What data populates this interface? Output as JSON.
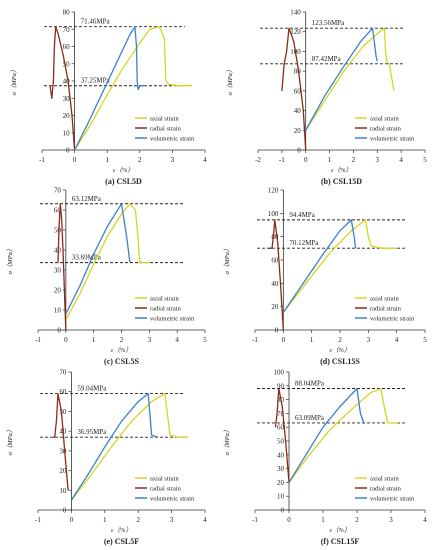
{
  "colors": {
    "axial": "#d4d620",
    "radial": "#8b2a16",
    "volumetric": "#3d7fcf",
    "axis": "#333333",
    "ref": "#222222"
  },
  "chart_data": [
    {
      "type": "line",
      "panel": "(a) CSL5D",
      "xlabel": "ε（%）",
      "ylabel": "σ（MPa）",
      "xlim": [
        -1,
        4
      ],
      "ylim": [
        0,
        80
      ],
      "xticks": [
        -1,
        0,
        1,
        2,
        3,
        4
      ],
      "yticks": [
        0,
        10,
        20,
        30,
        40,
        50,
        60,
        70,
        80
      ],
      "peak": 71.46,
      "residual": 37.25,
      "annotations": [
        "71.46MPa",
        "37.25MPa"
      ],
      "legend": [
        "axial strain",
        "radial strain",
        "volumetric strain"
      ],
      "series": [
        {
          "name": "axial strain",
          "color": "#d4d620",
          "x": [
            0,
            0.5,
            1.0,
            1.5,
            2.0,
            2.3,
            2.6,
            2.75,
            2.8,
            2.9,
            3.2,
            3.6
          ],
          "y": [
            0,
            15,
            32,
            48,
            62,
            70,
            71.46,
            65,
            40,
            38,
            37.25,
            37.25
          ]
        },
        {
          "name": "radial strain",
          "color": "#8b2a16",
          "x": [
            0,
            -0.08,
            -0.2,
            -0.35,
            -0.5,
            -0.58,
            -0.62,
            -0.65,
            -0.7,
            -0.75
          ],
          "y": [
            0,
            20,
            40,
            55,
            67,
            71.46,
            60,
            40,
            30,
            37
          ]
        },
        {
          "name": "volumetric strain",
          "color": "#3d7fcf",
          "x": [
            0,
            0.4,
            0.9,
            1.4,
            1.7,
            1.85,
            1.9,
            1.92,
            1.95,
            2.0,
            2.2
          ],
          "y": [
            0,
            15,
            35,
            55,
            67,
            71.46,
            60,
            40,
            35,
            37.25,
            37.25
          ]
        }
      ]
    },
    {
      "type": "line",
      "panel": "(b) CSL15D",
      "xlabel": "ε（%）",
      "ylabel": "σ（MPa）",
      "xlim": [
        -2,
        5
      ],
      "ylim": [
        0,
        140
      ],
      "xticks": [
        -2,
        -1,
        0,
        1,
        2,
        3,
        4,
        5
      ],
      "yticks": [
        0,
        20,
        40,
        60,
        80,
        100,
        120,
        140
      ],
      "peak": 123.56,
      "residual": 87.42,
      "annotations": [
        "123.56MPa",
        "87.42MPa"
      ],
      "legend": [
        "axial strain",
        "radial strain",
        "volumetric strain"
      ],
      "series": [
        {
          "name": "axial strain",
          "color": "#d4d620",
          "x": [
            0,
            0.8,
            1.6,
            2.4,
            3.0,
            3.3,
            3.35,
            3.4,
            3.5,
            3.7
          ],
          "y": [
            20,
            50,
            80,
            105,
            118,
            123.56,
            100,
            90,
            87.42,
            60
          ]
        },
        {
          "name": "radial strain",
          "color": "#8b2a16",
          "x": [
            0,
            -0.1,
            -0.3,
            -0.5,
            -0.7,
            -0.8,
            -0.9,
            -1.0
          ],
          "y": [
            0,
            40,
            80,
            110,
            123.56,
            100,
            87.42,
            60
          ]
        },
        {
          "name": "volumetric strain",
          "color": "#3d7fcf",
          "x": [
            0,
            0.8,
            1.6,
            2.3,
            2.8,
            2.9,
            2.95,
            3.0
          ],
          "y": [
            20,
            55,
            85,
            110,
            123.56,
            105,
            95,
            90
          ]
        }
      ]
    },
    {
      "type": "line",
      "panel": "(c) CSL5S",
      "xlabel": "ε（%）",
      "ylabel": "σ（MPa）",
      "xlim": [
        -1,
        5
      ],
      "ylim": [
        0,
        70
      ],
      "xticks": [
        -1,
        0,
        1,
        2,
        3,
        4,
        5
      ],
      "yticks": [
        0,
        10,
        20,
        30,
        40,
        50,
        60,
        70
      ],
      "peak": 63.12,
      "residual": 33.69,
      "annotations": [
        "63.12MPa",
        "33.69MPa"
      ],
      "legend": [
        "axial strain",
        "radial strain",
        "volumetric strain"
      ],
      "series": [
        {
          "name": "axial strain",
          "color": "#d4d620",
          "x": [
            0,
            0.5,
            1.0,
            1.5,
            2.0,
            2.3,
            2.5,
            2.6,
            2.65,
            2.8,
            3.0
          ],
          "y": [
            5,
            18,
            33,
            47,
            58,
            63.12,
            60,
            45,
            34,
            33.69,
            33.69
          ]
        },
        {
          "name": "radial strain",
          "color": "#8b2a16",
          "x": [
            0,
            -0.05,
            -0.1,
            -0.15,
            -0.2,
            -0.25,
            -0.28
          ],
          "y": [
            0,
            20,
            40,
            55,
            63.12,
            50,
            33.69
          ]
        },
        {
          "name": "volumetric strain",
          "color": "#3d7fcf",
          "x": [
            0,
            0.5,
            1.0,
            1.5,
            2.0,
            2.2,
            2.3
          ],
          "y": [
            8,
            22,
            38,
            52,
            63.12,
            45,
            34
          ]
        }
      ]
    },
    {
      "type": "line",
      "panel": "(d) CSL15S",
      "xlabel": "ε（%）",
      "ylabel": "σ（MPa）",
      "xlim": [
        -1,
        5
      ],
      "ylim": [
        0,
        120
      ],
      "xticks": [
        -1,
        0,
        1,
        2,
        3,
        4,
        5
      ],
      "yticks": [
        0,
        20,
        40,
        60,
        80,
        100,
        120
      ],
      "peak": 94.4,
      "residual": 70.12,
      "annotations": [
        "94.4MPa",
        "70.12MPa"
      ],
      "legend": [
        "axial strain",
        "radial strain",
        "volumetric strain"
      ],
      "series": [
        {
          "name": "axial strain",
          "color": "#d4d620",
          "x": [
            0,
            0.8,
            1.6,
            2.4,
            2.9,
            3.0,
            3.1,
            3.5,
            4.0
          ],
          "y": [
            15,
            40,
            65,
            85,
            94.4,
            80,
            72,
            70.12,
            70
          ]
        },
        {
          "name": "radial strain",
          "color": "#8b2a16",
          "x": [
            0,
            -0.1,
            -0.2,
            -0.3,
            -0.35,
            -0.4,
            -0.5
          ],
          "y": [
            0,
            40,
            75,
            94.4,
            80,
            70.12,
            70
          ]
        },
        {
          "name": "volumetric strain",
          "color": "#3d7fcf",
          "x": [
            0,
            0.7,
            1.4,
            2.0,
            2.4,
            2.5,
            2.55
          ],
          "y": [
            15,
            40,
            65,
            85,
            94.4,
            80,
            70
          ]
        }
      ]
    },
    {
      "type": "line",
      "panel": "(e) CSL5F",
      "xlabel": "ε（%）",
      "ylabel": "σ（MPa）",
      "xlim": [
        -1,
        4
      ],
      "ylim": [
        0,
        70
      ],
      "xticks": [
        -1,
        0,
        1,
        2,
        3,
        4
      ],
      "yticks": [
        0,
        10,
        20,
        30,
        40,
        50,
        60,
        70
      ],
      "peak": 59.04,
      "residual": 36.95,
      "annotations": [
        "59.04MPa",
        "36.95MPa"
      ],
      "legend": [
        "axial strain",
        "radial strain",
        "volumetric strain"
      ],
      "series": [
        {
          "name": "axial strain",
          "color": "#d4d620",
          "x": [
            0,
            0.6,
            1.2,
            1.8,
            2.4,
            2.8,
            2.9,
            2.95,
            3.2,
            3.5
          ],
          "y": [
            5,
            18,
            32,
            45,
            55,
            59.04,
            45,
            38,
            36.95,
            36.95
          ]
        },
        {
          "name": "radial strain",
          "color": "#8b2a16",
          "x": [
            -0.1,
            -0.2,
            -0.3,
            -0.4,
            -0.45,
            -0.5,
            -0.55
          ],
          "y": [
            10,
            30,
            50,
            59.04,
            45,
            36.95,
            37
          ]
        },
        {
          "name": "volumetric strain",
          "color": "#3d7fcf",
          "x": [
            0,
            0.5,
            1.0,
            1.5,
            2.0,
            2.3,
            2.4,
            2.6
          ],
          "y": [
            5,
            18,
            32,
            45,
            55,
            59.04,
            38,
            36.95
          ]
        }
      ]
    },
    {
      "type": "line",
      "panel": "(f) CSL15F",
      "xlabel": "ε（%）",
      "ylabel": "σ（MPa）",
      "xlim": [
        -1,
        4
      ],
      "ylim": [
        0,
        100
      ],
      "xticks": [
        -1,
        0,
        1,
        2,
        3,
        4
      ],
      "yticks": [
        0,
        10,
        20,
        30,
        40,
        50,
        60,
        70,
        80,
        90,
        100
      ],
      "peak": 88.04,
      "residual": 63.09,
      "annotations": [
        "88.04MPa",
        "63.09MPa"
      ],
      "legend": [
        "axial strain",
        "radial strain",
        "volumetric strain"
      ],
      "series": [
        {
          "name": "axial strain",
          "color": "#d4d620",
          "x": [
            0,
            0.6,
            1.2,
            1.8,
            2.4,
            2.7,
            2.8,
            2.9,
            3.2
          ],
          "y": [
            20,
            40,
            58,
            72,
            85,
            88.04,
            75,
            63.09,
            63
          ]
        },
        {
          "name": "radial strain",
          "color": "#8b2a16",
          "x": [
            0,
            -0.1,
            -0.2,
            -0.3,
            -0.35,
            -0.4
          ],
          "y": [
            20,
            50,
            75,
            88.04,
            70,
            60
          ]
        },
        {
          "name": "volumetric strain",
          "color": "#3d7fcf",
          "x": [
            0,
            0.5,
            1.0,
            1.5,
            2.0,
            2.1,
            2.2
          ],
          "y": [
            20,
            40,
            60,
            75,
            88.04,
            70,
            63.09
          ]
        }
      ]
    }
  ]
}
